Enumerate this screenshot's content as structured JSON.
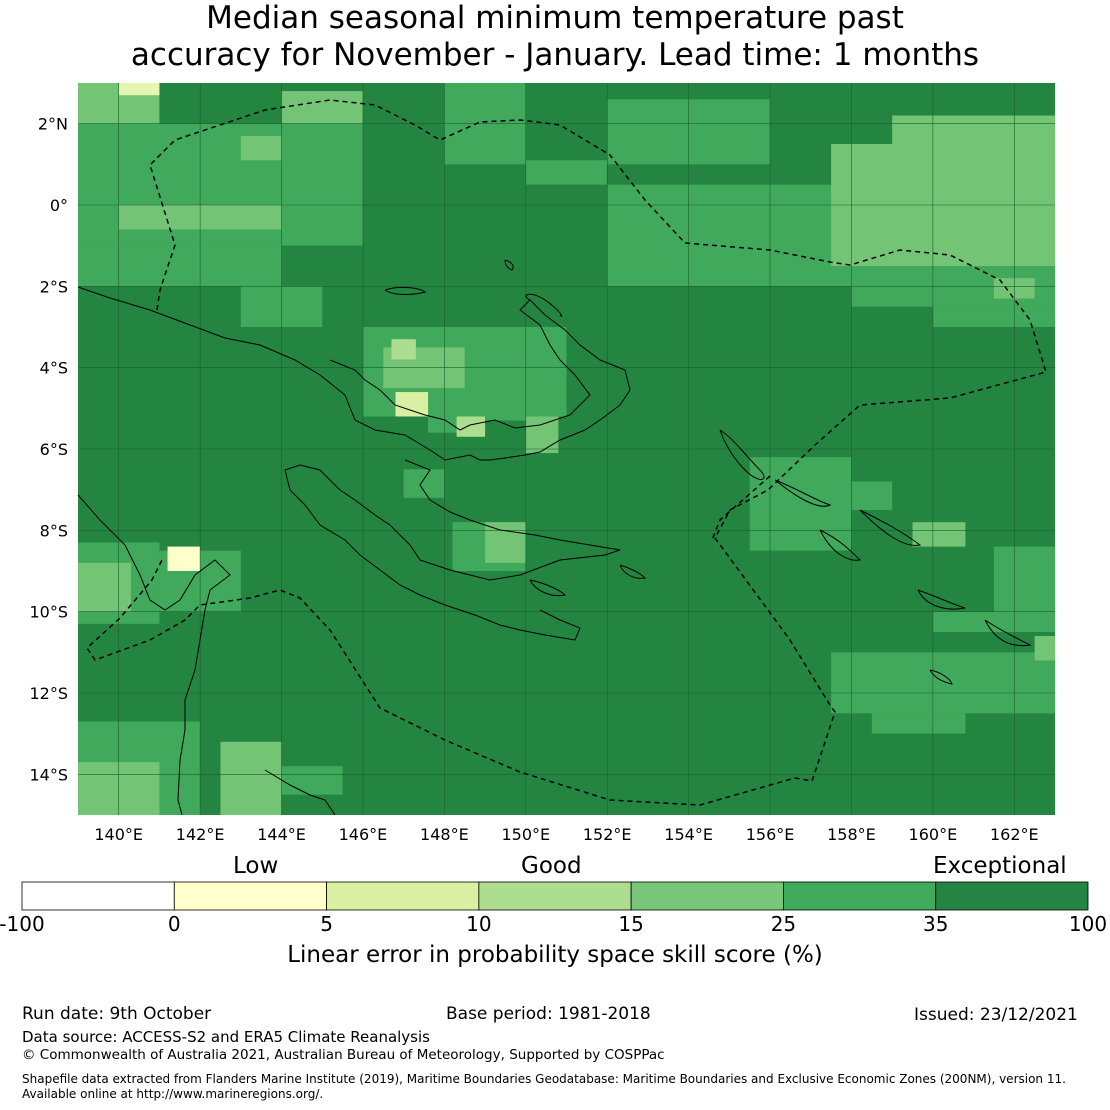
{
  "title": {
    "line1": "Median seasonal minimum temperature past",
    "line2": "accuracy for November - January. Lead time: 1 months"
  },
  "map": {
    "lon_range": [
      139,
      163
    ],
    "lat_range": [
      -15,
      3
    ],
    "lon_ticks": [
      "140°E",
      "142°E",
      "144°E",
      "146°E",
      "148°E",
      "150°E",
      "152°E",
      "154°E",
      "156°E",
      "158°E",
      "160°E",
      "162°E"
    ],
    "lat_ticks": [
      "2°N",
      "0°",
      "2°S",
      "4°S",
      "6°S",
      "8°S",
      "10°S",
      "12°S",
      "14°S"
    ],
    "default_color": "#248541",
    "patches": [
      {
        "lon": [
          139,
          141
        ],
        "lat": [
          2,
          3
        ],
        "color": "#74c476"
      },
      {
        "lon": [
          140,
          141
        ],
        "lat": [
          2.7,
          3
        ],
        "color": "#e6f5b0"
      },
      {
        "lon": [
          139,
          146
        ],
        "lat": [
          -1,
          2
        ],
        "color": "#41a95c"
      },
      {
        "lon": [
          140,
          144
        ],
        "lat": [
          -0.6,
          0
        ],
        "color": "#74c476"
      },
      {
        "lon": [
          143,
          144
        ],
        "lat": [
          1.1,
          1.7
        ],
        "color": "#74c476"
      },
      {
        "lon": [
          144,
          146
        ],
        "lat": [
          2,
          2.8
        ],
        "color": "#74c476"
      },
      {
        "lon": [
          139,
          144
        ],
        "lat": [
          -2,
          -1
        ],
        "color": "#41a95c"
      },
      {
        "lon": [
          143,
          145
        ],
        "lat": [
          -3,
          -2
        ],
        "color": "#41a95c"
      },
      {
        "lon": [
          146,
          151
        ],
        "lat": [
          -5.2,
          -3
        ],
        "color": "#41a95c"
      },
      {
        "lon": [
          146.5,
          148.5
        ],
        "lat": [
          -4.5,
          -3.5
        ],
        "color": "#74c476"
      },
      {
        "lon": [
          146.7,
          147.3
        ],
        "lat": [
          -3.8,
          -3.3
        ],
        "color": "#addd8e"
      },
      {
        "lon": [
          146.8,
          147.6
        ],
        "lat": [
          -5.2,
          -4.6
        ],
        "color": "#d9f0a3"
      },
      {
        "lon": [
          147.6,
          149
        ],
        "lat": [
          -5.6,
          -5.2
        ],
        "color": "#41a95c"
      },
      {
        "lon": [
          148.3,
          149
        ],
        "lat": [
          -5.7,
          -5.2
        ],
        "color": "#addd8e"
      },
      {
        "lon": [
          149,
          150
        ],
        "lat": [
          -5.3,
          -5.0
        ],
        "color": "#41a95c"
      },
      {
        "lon": [
          150,
          150.8
        ],
        "lat": [
          -6.1,
          -5.2
        ],
        "color": "#74c476"
      },
      {
        "lon": [
          149.8,
          150.8
        ],
        "lat": [
          -4,
          -3.5
        ],
        "color": "#41a95c"
      },
      {
        "lon": [
          148,
          150
        ],
        "lat": [
          1,
          3
        ],
        "color": "#41a95c"
      },
      {
        "lon": [
          150,
          152
        ],
        "lat": [
          0.5,
          1.1
        ],
        "color": "#41a95c"
      },
      {
        "lon": [
          152,
          156
        ],
        "lat": [
          1,
          2.6
        ],
        "color": "#41a95c"
      },
      {
        "lon": [
          152,
          163
        ],
        "lat": [
          -2,
          0.5
        ],
        "color": "#41a95c"
      },
      {
        "lon": [
          157.5,
          163
        ],
        "lat": [
          -1.5,
          1.5
        ],
        "color": "#74c476"
      },
      {
        "lon": [
          159,
          163
        ],
        "lat": [
          1.5,
          2.2
        ],
        "color": "#74c476"
      },
      {
        "lon": [
          158,
          163
        ],
        "lat": [
          -2.5,
          -1.5
        ],
        "color": "#41a95c"
      },
      {
        "lon": [
          160,
          163
        ],
        "lat": [
          -3,
          -2.5
        ],
        "color": "#41a95c"
      },
      {
        "lon": [
          161.5,
          162.5
        ],
        "lat": [
          -2.3,
          -1.8
        ],
        "color": "#74c476"
      },
      {
        "lon": [
          155.5,
          158
        ],
        "lat": [
          -8.5,
          -6.2
        ],
        "color": "#41a95c"
      },
      {
        "lon": [
          158,
          159
        ],
        "lat": [
          -7.5,
          -6.8
        ],
        "color": "#41a95c"
      },
      {
        "lon": [
          159.5,
          160.8
        ],
        "lat": [
          -8.4,
          -7.8
        ],
        "color": "#74c476"
      },
      {
        "lon": [
          161.5,
          163
        ],
        "lat": [
          -10,
          -8.4
        ],
        "color": "#41a95c"
      },
      {
        "lon": [
          160,
          163
        ],
        "lat": [
          -10.5,
          -10
        ],
        "color": "#41a95c"
      },
      {
        "lon": [
          157.5,
          163
        ],
        "lat": [
          -12.5,
          -11
        ],
        "color": "#41a95c"
      },
      {
        "lon": [
          158.5,
          160.8
        ],
        "lat": [
          -13,
          -12.5
        ],
        "color": "#41a95c"
      },
      {
        "lon": [
          162.5,
          163
        ],
        "lat": [
          -11.2,
          -10.6
        ],
        "color": "#74c476"
      },
      {
        "lon": [
          148.2,
          150
        ],
        "lat": [
          -9,
          -7.8
        ],
        "color": "#41a95c"
      },
      {
        "lon": [
          149,
          150
        ],
        "lat": [
          -8.8,
          -7.8
        ],
        "color": "#74c476"
      },
      {
        "lon": [
          147,
          148
        ],
        "lat": [
          -7.2,
          -6.5
        ],
        "color": "#41a95c"
      },
      {
        "lon": [
          141,
          143
        ],
        "lat": [
          -10,
          -8.5
        ],
        "color": "#41a95c"
      },
      {
        "lon": [
          141.2,
          142
        ],
        "lat": [
          -9,
          -8.4
        ],
        "color": "#ffffcc"
      },
      {
        "lon": [
          139,
          141
        ],
        "lat": [
          -10.3,
          -8.3
        ],
        "color": "#41a95c"
      },
      {
        "lon": [
          139,
          140.3
        ],
        "lat": [
          -10,
          -8.8
        ],
        "color": "#74c476"
      },
      {
        "lon": [
          139,
          142
        ],
        "lat": [
          -15,
          -12.7
        ],
        "color": "#41a95c"
      },
      {
        "lon": [
          139,
          141
        ],
        "lat": [
          -15,
          -13.7
        ],
        "color": "#74c476"
      },
      {
        "lon": [
          142.5,
          144
        ],
        "lat": [
          -15,
          -13.2
        ],
        "color": "#74c476"
      },
      {
        "lon": [
          144,
          145.5
        ],
        "lat": [
          -14.5,
          -13.8
        ],
        "color": "#41a95c"
      }
    ]
  },
  "colorbar": {
    "category_labels": {
      "low": "Low",
      "good": "Good",
      "exceptional": "Exceptional"
    },
    "ticks": [
      "-100",
      "0",
      "5",
      "10",
      "15",
      "25",
      "35",
      "100"
    ],
    "colors": [
      "#ffffff",
      "#ffffcc",
      "#d9f0a3",
      "#addd8e",
      "#78c679",
      "#41ab5d",
      "#238443"
    ],
    "label": "Linear error in probability space skill score (%)"
  },
  "footer": {
    "run_date": "Run date: 9th October",
    "base_period": "Base period: 1981-2018",
    "issued": "Issued: 23/12/2021",
    "data_source": "Data source: ACCESS-S2 and ERA5 Climate Reanalysis",
    "copyright": "© Commonwealth of Australia 2021, Australian Bureau of Meteorology, Supported by COSPPac",
    "shapefile_line1": "Shapefile data extracted from Flanders Marine Institute (2019), Maritime Boundaries Geodatabase: Maritime Boundaries and Exclusive Economic Zones (200NM), version 11.",
    "shapefile_line2": "Available online at http://www.marineregions.org/."
  }
}
